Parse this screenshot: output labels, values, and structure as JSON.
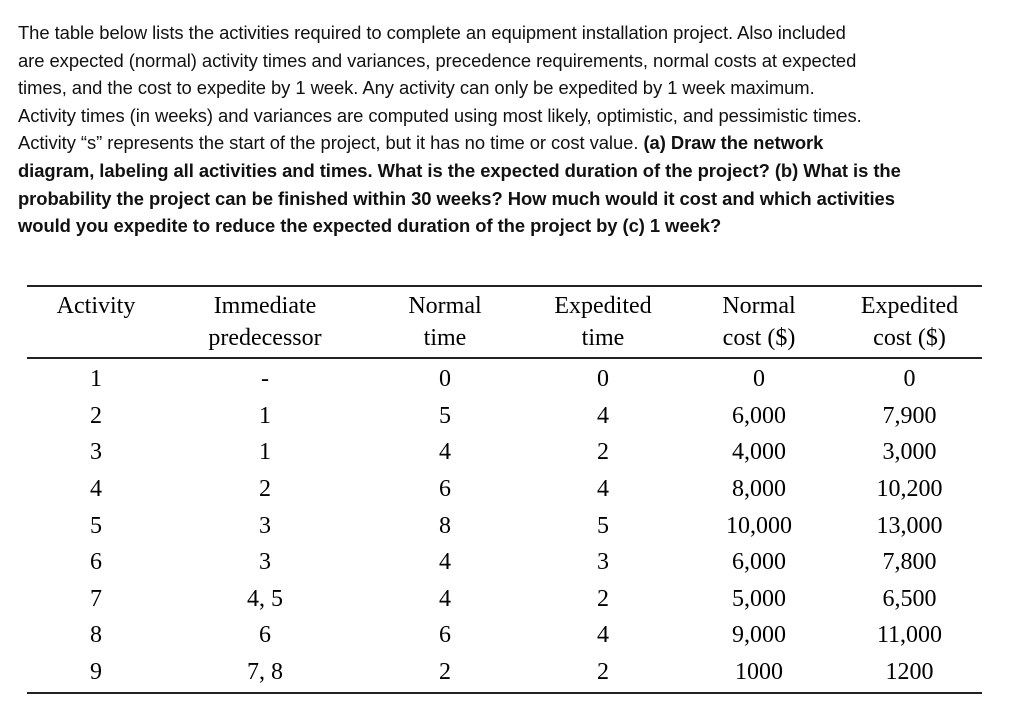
{
  "problem": {
    "lines": [
      {
        "normal": "The table below lists the activities required to complete an equipment installation project. Also included",
        "bold": ""
      },
      {
        "normal": "are expected (normal) activity times and variances, precedence requirements, normal costs at expected",
        "bold": ""
      },
      {
        "normal": "times, and the cost to expedite by 1 week. Any activity can only be expedited by 1 week maximum.",
        "bold": ""
      },
      {
        "normal": "Activity times (in weeks) and variances are computed using most likely, optimistic, and pessimistic times.",
        "bold": ""
      },
      {
        "normal": "Activity “s” represents the start of the project, but it has no time or cost value. ",
        "bold": "(a) Draw the network"
      },
      {
        "normal": "",
        "bold": "diagram, labeling all activities and times. What is the expected duration of the project? (b) What is the"
      },
      {
        "normal": "",
        "bold": "probability the project can be finished within 30 weeks? How much would it cost and which activities"
      },
      {
        "normal": "",
        "bold": "would you expedite to reduce the expected duration of the project by (c) 1 week?"
      }
    ]
  },
  "table": {
    "headers": [
      {
        "line1": "Activity",
        "line2": ""
      },
      {
        "line1": "Immediate",
        "line2": "predecessor"
      },
      {
        "line1": "Normal",
        "line2": "time"
      },
      {
        "line1": "Expedited",
        "line2": "time"
      },
      {
        "line1": "Normal",
        "line2": "cost ($)"
      },
      {
        "line1": "Expedited",
        "line2": "cost ($)"
      }
    ],
    "rows": [
      {
        "activity": "1",
        "predecessor": "-",
        "normal_time": "0",
        "expedited_time": "0",
        "normal_cost": "0",
        "expedited_cost": "0"
      },
      {
        "activity": "2",
        "predecessor": "1",
        "normal_time": "5",
        "expedited_time": "4",
        "normal_cost": "6,000",
        "expedited_cost": "7,900"
      },
      {
        "activity": "3",
        "predecessor": "1",
        "normal_time": "4",
        "expedited_time": "2",
        "normal_cost": "4,000",
        "expedited_cost": "3,000"
      },
      {
        "activity": "4",
        "predecessor": "2",
        "normal_time": "6",
        "expedited_time": "4",
        "normal_cost": "8,000",
        "expedited_cost": "10,200"
      },
      {
        "activity": "5",
        "predecessor": "3",
        "normal_time": "8",
        "expedited_time": "5",
        "normal_cost": "10,000",
        "expedited_cost": "13,000"
      },
      {
        "activity": "6",
        "predecessor": "3",
        "normal_time": "4",
        "expedited_time": "3",
        "normal_cost": "6,000",
        "expedited_cost": "7,800"
      },
      {
        "activity": "7",
        "predecessor": "4, 5",
        "normal_time": "4",
        "expedited_time": "2",
        "normal_cost": "5,000",
        "expedited_cost": "6,500"
      },
      {
        "activity": "8",
        "predecessor": "6",
        "normal_time": "6",
        "expedited_time": "4",
        "normal_cost": "9,000",
        "expedited_cost": "11,000"
      },
      {
        "activity": "9",
        "predecessor": "7, 8",
        "normal_time": "2",
        "expedited_time": "2",
        "normal_cost": "1000",
        "expedited_cost": "1200"
      }
    ]
  }
}
